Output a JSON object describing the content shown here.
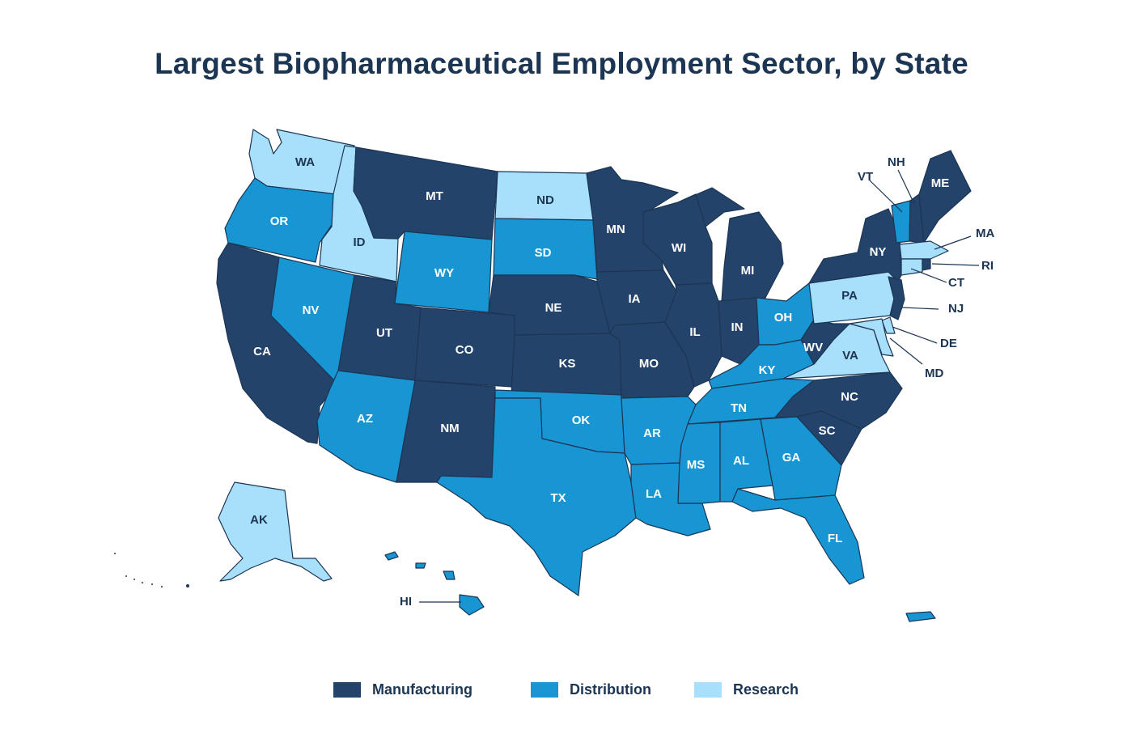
{
  "title": "Largest Biopharmaceutical Employment Sector, by State",
  "colors": {
    "Manufacturing": "#23436a",
    "Distribution": "#1895d3",
    "Research": "#a8e0fb",
    "outline": "#1c3553"
  },
  "legend": [
    {
      "label": "Manufacturing",
      "color": "#23436a"
    },
    {
      "label": "Distribution",
      "color": "#1895d3"
    },
    {
      "label": "Research",
      "color": "#a8e0fb"
    }
  ],
  "states": [
    {
      "abbr": "WA",
      "sector": "Research"
    },
    {
      "abbr": "OR",
      "sector": "Distribution"
    },
    {
      "abbr": "CA",
      "sector": "Manufacturing"
    },
    {
      "abbr": "ID",
      "sector": "Research"
    },
    {
      "abbr": "NV",
      "sector": "Distribution"
    },
    {
      "abbr": "MT",
      "sector": "Manufacturing"
    },
    {
      "abbr": "WY",
      "sector": "Distribution"
    },
    {
      "abbr": "UT",
      "sector": "Manufacturing"
    },
    {
      "abbr": "AZ",
      "sector": "Distribution"
    },
    {
      "abbr": "CO",
      "sector": "Manufacturing"
    },
    {
      "abbr": "NM",
      "sector": "Manufacturing"
    },
    {
      "abbr": "ND",
      "sector": "Research"
    },
    {
      "abbr": "SD",
      "sector": "Distribution"
    },
    {
      "abbr": "NE",
      "sector": "Manufacturing"
    },
    {
      "abbr": "KS",
      "sector": "Manufacturing"
    },
    {
      "abbr": "OK",
      "sector": "Distribution"
    },
    {
      "abbr": "TX",
      "sector": "Distribution"
    },
    {
      "abbr": "MN",
      "sector": "Manufacturing"
    },
    {
      "abbr": "IA",
      "sector": "Manufacturing"
    },
    {
      "abbr": "MO",
      "sector": "Manufacturing"
    },
    {
      "abbr": "AR",
      "sector": "Distribution"
    },
    {
      "abbr": "LA",
      "sector": "Distribution"
    },
    {
      "abbr": "WI",
      "sector": "Manufacturing"
    },
    {
      "abbr": "IL",
      "sector": "Manufacturing"
    },
    {
      "abbr": "MI",
      "sector": "Manufacturing"
    },
    {
      "abbr": "IN",
      "sector": "Manufacturing"
    },
    {
      "abbr": "OH",
      "sector": "Distribution"
    },
    {
      "abbr": "KY",
      "sector": "Distribution"
    },
    {
      "abbr": "TN",
      "sector": "Distribution"
    },
    {
      "abbr": "MS",
      "sector": "Distribution"
    },
    {
      "abbr": "AL",
      "sector": "Distribution"
    },
    {
      "abbr": "GA",
      "sector": "Distribution"
    },
    {
      "abbr": "FL",
      "sector": "Distribution"
    },
    {
      "abbr": "SC",
      "sector": "Manufacturing"
    },
    {
      "abbr": "NC",
      "sector": "Manufacturing"
    },
    {
      "abbr": "VA",
      "sector": "Research"
    },
    {
      "abbr": "WV",
      "sector": "Manufacturing"
    },
    {
      "abbr": "PA",
      "sector": "Research"
    },
    {
      "abbr": "NY",
      "sector": "Manufacturing"
    },
    {
      "abbr": "VT",
      "sector": "Distribution"
    },
    {
      "abbr": "NH",
      "sector": "Manufacturing"
    },
    {
      "abbr": "ME",
      "sector": "Manufacturing"
    },
    {
      "abbr": "MA",
      "sector": "Research"
    },
    {
      "abbr": "RI",
      "sector": "Manufacturing"
    },
    {
      "abbr": "CT",
      "sector": "Research"
    },
    {
      "abbr": "NJ",
      "sector": "Manufacturing"
    },
    {
      "abbr": "DE",
      "sector": "Research"
    },
    {
      "abbr": "MD",
      "sector": "Research"
    },
    {
      "abbr": "AK",
      "sector": "Research"
    },
    {
      "abbr": "HI",
      "sector": "Distribution"
    }
  ],
  "territories": [
    {
      "name": "Puerto Rico",
      "sector": "Distribution"
    }
  ]
}
